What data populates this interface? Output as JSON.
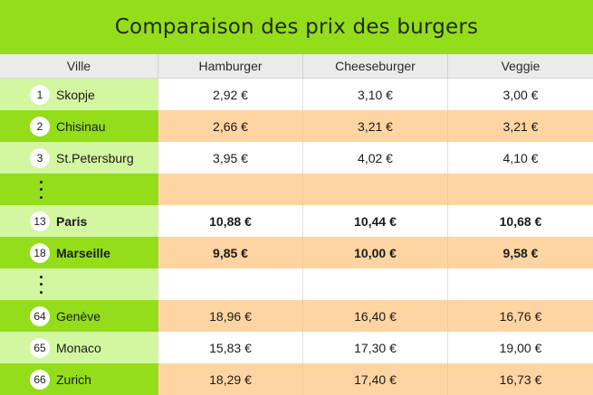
{
  "title": "Comparaison des prix des burgers",
  "columns": [
    "Ville",
    "Hamburger",
    "Cheeseburger",
    "Veggie"
  ],
  "rows": [
    {
      "rank": "1",
      "city": "Skopje",
      "hamburger": "2,92 €",
      "cheeseburger": "3,10 €",
      "veggie": "3,00 €"
    },
    {
      "rank": "2",
      "city": "Chisinau",
      "hamburger": "2,66 €",
      "cheeseburger": "3,21 €",
      "veggie": "3,21 €"
    },
    {
      "rank": "3",
      "city": "St.Petersburg",
      "hamburger": "3,95 €",
      "cheeseburger": "4,02 €",
      "veggie": "4,10 €"
    },
    {
      "rank": "13",
      "city": "Paris",
      "hamburger": "10,88 €",
      "cheeseburger": "10,44 €",
      "veggie": "10,68 €"
    },
    {
      "rank": "18",
      "city": "Marseille",
      "hamburger": "9,85 €",
      "cheeseburger": "10,00 €",
      "veggie": "9,58 €"
    },
    {
      "rank": "64",
      "city": "Genève",
      "hamburger": "18,96 €",
      "cheeseburger": "16,40 €",
      "veggie": "16,76 €"
    },
    {
      "rank": "65",
      "city": "Monaco",
      "hamburger": "15,83 €",
      "cheeseburger": "17,30 €",
      "veggie": "19,00 €"
    },
    {
      "rank": "66",
      "city": "Zurich",
      "hamburger": "18,29 €",
      "cheeseburger": "17,40 €",
      "veggie": "16,73 €"
    }
  ],
  "colors": {
    "title_bar": "#94dd1b",
    "city_light": "#d3f6a0",
    "city_dark": "#94dd1b",
    "value_white": "#ffffff",
    "value_orange": "#fed5a2",
    "header_bg": "#ebebeb"
  }
}
